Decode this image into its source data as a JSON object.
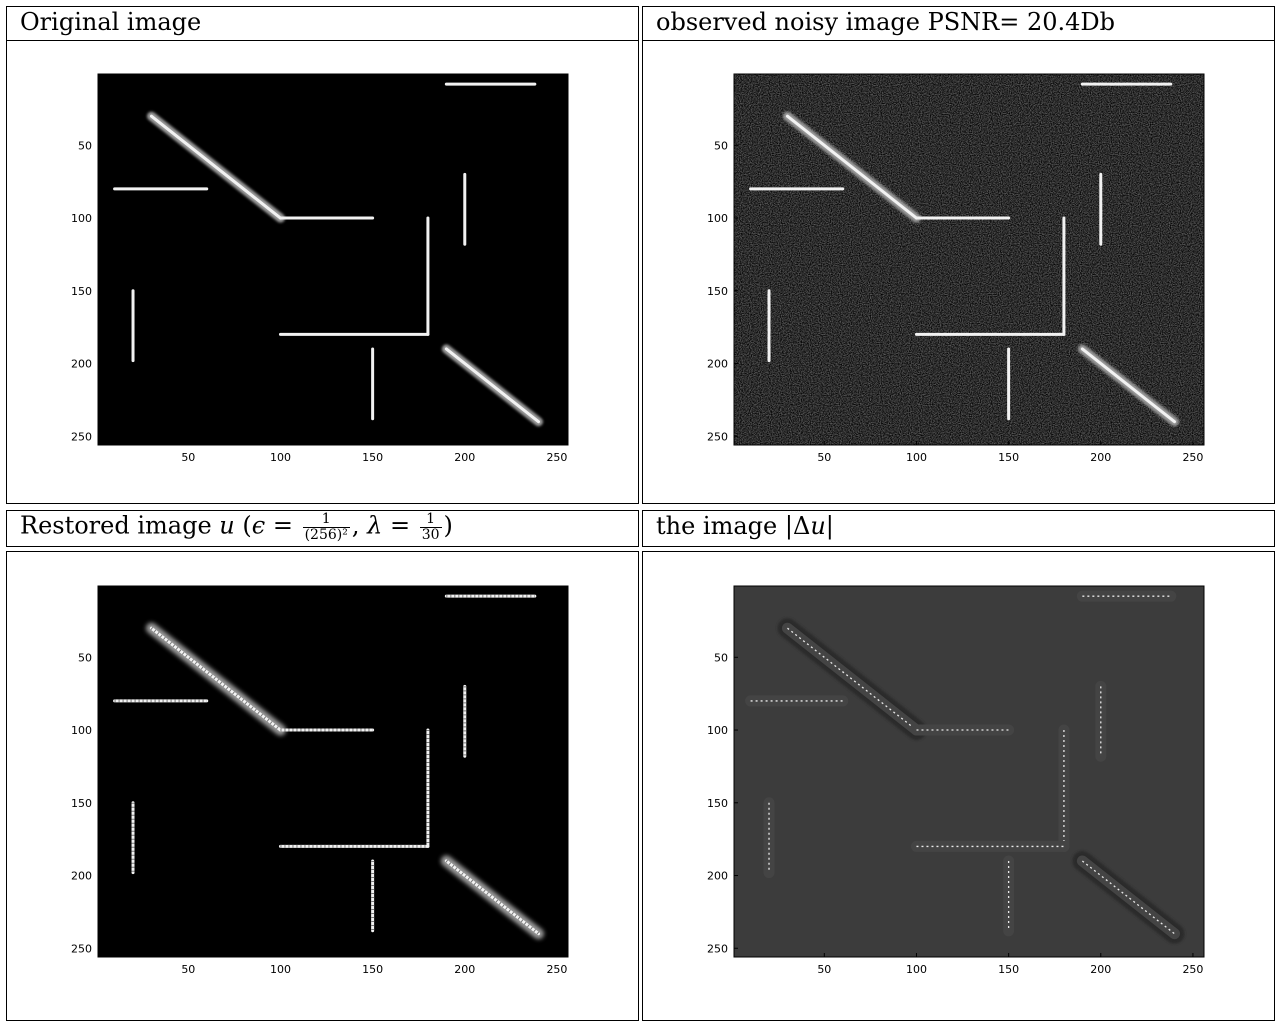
{
  "figure": {
    "panels": [
      {
        "id": "original",
        "caption": "Original image",
        "style": "clean"
      },
      {
        "id": "noisy",
        "caption": "observed noisy image PSNR= 20.4Db",
        "style": "noisy"
      },
      {
        "id": "restored",
        "caption_parts": {
          "prefix": "Restored image ",
          "var": "u",
          "open": " (",
          "eps": "ϵ",
          "eq1": " = ",
          "frac1_num": "1",
          "frac1_den": "(256)²",
          "sep": ", ",
          "lam": "λ",
          "eq2": " = ",
          "frac2_num": "1",
          "frac2_den": "30",
          "close": ")"
        },
        "style": "restored"
      },
      {
        "id": "laplacian",
        "caption_parts": {
          "prefix": "the image |",
          "delta": "Δ",
          "var": "u",
          "suffix": "|"
        },
        "style": "edges"
      }
    ]
  },
  "chart_data": [
    {
      "type": "heatmap",
      "title": "Original image",
      "x_ticks": [
        50,
        100,
        150,
        200,
        250
      ],
      "y_ticks": [
        50,
        100,
        150,
        200,
        250
      ],
      "xlim": [
        1,
        256
      ],
      "ylim": [
        1,
        256
      ],
      "colormap": "gray",
      "segments": [
        {
          "x1": 190,
          "y1": 8,
          "x2": 238,
          "y2": 8
        },
        {
          "x1": 30,
          "y1": 30,
          "x2": 100,
          "y2": 100
        },
        {
          "x1": 10,
          "y1": 80,
          "x2": 60,
          "y2": 80
        },
        {
          "x1": 100,
          "y1": 100,
          "x2": 150,
          "y2": 100
        },
        {
          "x1": 200,
          "y1": 70,
          "x2": 200,
          "y2": 118
        },
        {
          "x1": 180,
          "y1": 100,
          "x2": 180,
          "y2": 180
        },
        {
          "x1": 100,
          "y1": 180,
          "x2": 180,
          "y2": 180
        },
        {
          "x1": 20,
          "y1": 150,
          "x2": 20,
          "y2": 198
        },
        {
          "x1": 150,
          "y1": 190,
          "x2": 150,
          "y2": 238
        },
        {
          "x1": 190,
          "y1": 190,
          "x2": 240,
          "y2": 240
        }
      ]
    },
    {
      "type": "heatmap",
      "title": "observed noisy image PSNR= 20.4Db",
      "x_ticks": [
        50,
        100,
        150,
        200,
        250
      ],
      "y_ticks": [
        50,
        100,
        150,
        200,
        250
      ],
      "xlim": [
        1,
        256
      ],
      "ylim": [
        1,
        256
      ],
      "colormap": "gray",
      "psnr_db": 20.4
    },
    {
      "type": "heatmap",
      "title": "Restored image u",
      "x_ticks": [
        50,
        100,
        150,
        200,
        250
      ],
      "y_ticks": [
        50,
        100,
        150,
        200,
        250
      ],
      "xlim": [
        1,
        256
      ],
      "ylim": [
        1,
        256
      ],
      "colormap": "gray"
    },
    {
      "type": "heatmap",
      "title": "the image |Δu|",
      "x_ticks": [
        50,
        100,
        150,
        200,
        250
      ],
      "y_ticks": [
        50,
        100,
        150,
        200,
        250
      ],
      "xlim": [
        1,
        256
      ],
      "ylim": [
        1,
        256
      ],
      "colormap": "gray",
      "background": "#3c3c3c"
    }
  ]
}
